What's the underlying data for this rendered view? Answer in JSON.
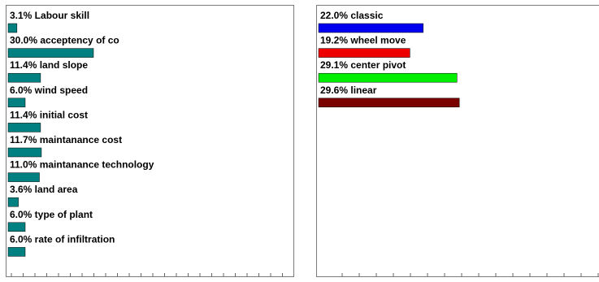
{
  "colors": {
    "criteria_bar": "#008080",
    "axis_line": "#666666",
    "panel_border": "#7a7a7a"
  },
  "chart_data": [
    {
      "type": "bar",
      "orientation": "horizontal",
      "title": "",
      "categories": [
        "Labour skill",
        "acceptency of co",
        "land slope",
        "wind speed",
        "initial cost",
        "maintanance cost",
        "maintanance technology",
        "land area",
        "type of plant",
        "rate of infiltration"
      ],
      "values": [
        3.1,
        30.0,
        11.4,
        6.0,
        11.4,
        11.7,
        11.0,
        3.6,
        6.0,
        6.0
      ],
      "labels": [
        "3.1% Labour skill",
        "30.0% acceptency of co",
        "11.4% land slope",
        "6.0% wind speed",
        "11.4% initial cost",
        "11.7% maintanance cost",
        "11.0% maintanance technology",
        "3.6% land area",
        "6.0% type of plant",
        "6.0% rate of infiltration"
      ],
      "unit": "%",
      "xlim": [
        0,
        100
      ],
      "bar_color": "#008080",
      "legend": false,
      "grid": false
    },
    {
      "type": "bar",
      "orientation": "horizontal",
      "title": "",
      "categories": [
        "classic",
        "wheel move",
        "center pivot",
        "linear"
      ],
      "values": [
        22.0,
        19.2,
        29.1,
        29.6
      ],
      "labels": [
        "22.0% classic",
        "19.2% wheel move",
        "29.1% center pivot",
        "29.6% linear"
      ],
      "unit": "%",
      "xlim": [
        0,
        60
      ],
      "colors": [
        "#0000ee",
        "#ee0000",
        "#00ee00",
        "#7a0000"
      ],
      "legend": false,
      "grid": false
    }
  ]
}
